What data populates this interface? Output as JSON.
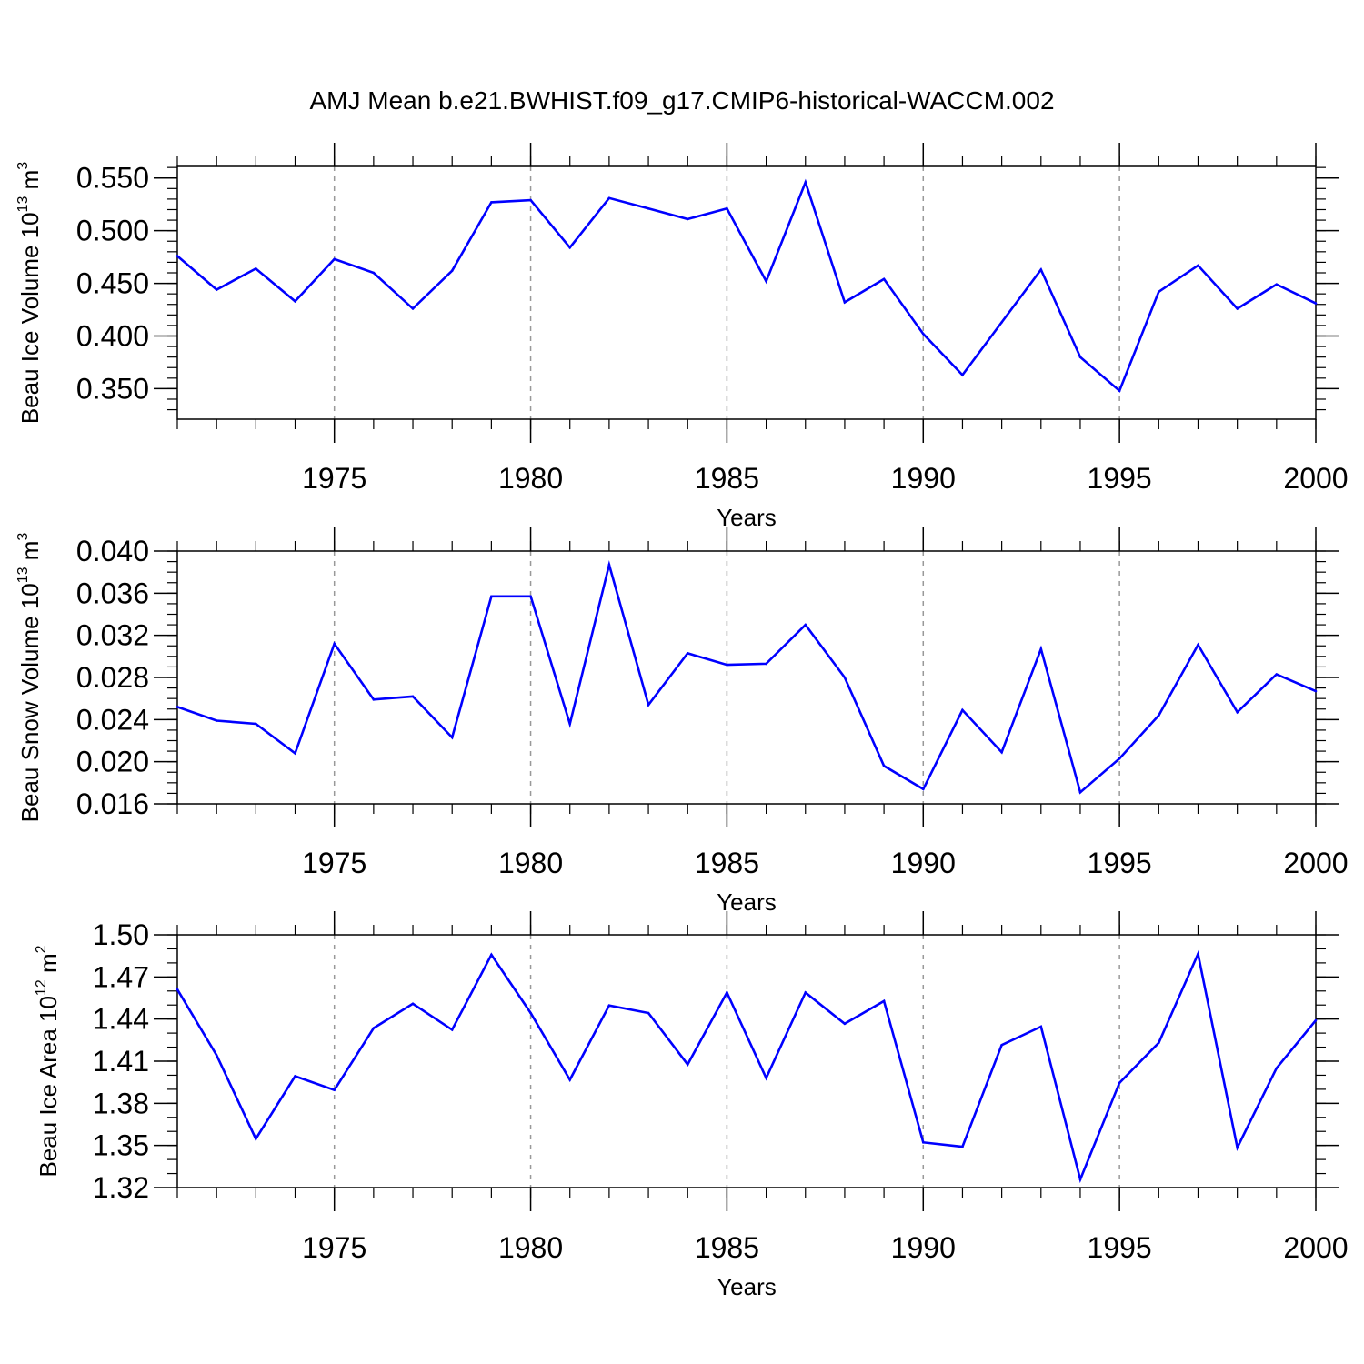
{
  "figure_title": "AMJ Mean b.e21.BWHIST.f09_g17.CMIP6-historical-WACCM.002",
  "colors": {
    "line": "#0000ff",
    "axis": "#000000",
    "refline": "#999999",
    "background": "#ffffff"
  },
  "chart_data": [
    {
      "type": "line",
      "title": "AMJ Mean b.e21.BWHIST.f09_g17.CMIP6-historical-WACCM.002",
      "xlabel": "Years",
      "ylabel": {
        "text": "Beau Ice Volume 10",
        "exp": "13",
        "unit": " m",
        "unit_exp": "3"
      },
      "xlim": [
        1971,
        2000
      ],
      "ylim": [
        0.321,
        0.561
      ],
      "xticks": [
        1975,
        1980,
        1985,
        1990,
        1995,
        2000
      ],
      "yticks": [
        0.35,
        0.4,
        0.45,
        0.5,
        0.55
      ],
      "ytick_labels": [
        "0.350",
        "0.400",
        "0.450",
        "0.500",
        "0.550"
      ],
      "ymajor_step": 0.05,
      "yminor_step": 0.01,
      "grid": "dashed vertical lines at major x ticks",
      "series": [
        {
          "name": "Beau Ice Volume",
          "x": [
            1971,
            1972,
            1973,
            1974,
            1975,
            1976,
            1977,
            1978,
            1979,
            1980,
            1981,
            1982,
            1983,
            1984,
            1985,
            1986,
            1987,
            1988,
            1989,
            1990,
            1991,
            1992,
            1993,
            1994,
            1995,
            1996,
            1997,
            1998,
            1999,
            2000
          ],
          "values": [
            0.476,
            0.444,
            0.464,
            0.433,
            0.473,
            0.46,
            0.426,
            0.462,
            0.527,
            0.529,
            0.484,
            0.531,
            0.521,
            0.511,
            0.521,
            0.452,
            0.546,
            0.432,
            0.454,
            0.402,
            0.363,
            0.413,
            0.463,
            0.38,
            0.348,
            0.442,
            0.467,
            0.426,
            0.449,
            0.431
          ]
        }
      ]
    },
    {
      "type": "line",
      "xlabel": "Years",
      "ylabel": {
        "text": "Beau Snow Volume 10",
        "exp": "13",
        "unit": " m",
        "unit_exp": "3"
      },
      "xlim": [
        1971,
        2000
      ],
      "ylim": [
        0.016,
        0.04
      ],
      "xticks": [
        1975,
        1980,
        1985,
        1990,
        1995,
        2000
      ],
      "yticks": [
        0.016,
        0.02,
        0.024,
        0.028,
        0.032,
        0.036,
        0.04
      ],
      "ytick_labels": [
        "0.016",
        "0.020",
        "0.024",
        "0.028",
        "0.032",
        "0.036",
        "0.040"
      ],
      "ymajor_step": 0.004,
      "yminor_step": 0.001,
      "grid": "dashed vertical lines at major x ticks",
      "series": [
        {
          "name": "Beau Snow Volume",
          "x": [
            1971,
            1972,
            1973,
            1974,
            1975,
            1976,
            1977,
            1978,
            1979,
            1980,
            1981,
            1982,
            1983,
            1984,
            1985,
            1986,
            1987,
            1988,
            1989,
            1990,
            1991,
            1992,
            1993,
            1994,
            1995,
            1996,
            1997,
            1998,
            1999,
            2000
          ],
          "values": [
            0.0252,
            0.0239,
            0.0236,
            0.0208,
            0.0312,
            0.0259,
            0.0262,
            0.0223,
            0.0357,
            0.0357,
            0.0236,
            0.0387,
            0.0254,
            0.0303,
            0.0292,
            0.0293,
            0.033,
            0.028,
            0.0196,
            0.0174,
            0.0249,
            0.0209,
            0.0307,
            0.0171,
            0.0203,
            0.0244,
            0.0311,
            0.0247,
            0.0283,
            0.0267
          ]
        }
      ]
    },
    {
      "type": "line",
      "xlabel": "Years",
      "ylabel": {
        "text": "Beau Ice Area 10",
        "exp": "12",
        "unit": " m",
        "unit_exp": "2"
      },
      "xlim": [
        1971,
        2000
      ],
      "ylim": [
        1.32,
        1.5
      ],
      "xticks": [
        1975,
        1980,
        1985,
        1990,
        1995,
        2000
      ],
      "yticks": [
        1.32,
        1.35,
        1.38,
        1.41,
        1.44,
        1.47,
        1.5
      ],
      "ytick_labels": [
        "1.32",
        "1.35",
        "1.38",
        "1.41",
        "1.44",
        "1.47",
        "1.50"
      ],
      "ymajor_step": 0.03,
      "yminor_step": 0.01,
      "grid": "dashed vertical lines at major x ticks",
      "series": [
        {
          "name": "Beau Ice Area",
          "x": [
            1971,
            1972,
            1973,
            1974,
            1975,
            1976,
            1977,
            1978,
            1979,
            1980,
            1981,
            1982,
            1983,
            1984,
            1985,
            1986,
            1987,
            1988,
            1989,
            1990,
            1991,
            1992,
            1993,
            1994,
            1995,
            1996,
            1997,
            1998,
            1999,
            2000
          ],
          "values": [
            1.4611,
            1.4142,
            1.3547,
            1.3993,
            1.3895,
            1.4336,
            1.4509,
            1.4324,
            1.4858,
            1.4443,
            1.3968,
            1.4497,
            1.4443,
            1.4077,
            1.4589,
            1.398,
            1.4589,
            1.4367,
            1.4528,
            1.3522,
            1.3491,
            1.4215,
            1.4346,
            1.3258,
            1.3946,
            1.4231,
            1.4864,
            1.3485,
            1.405,
            1.4391
          ]
        }
      ]
    }
  ]
}
